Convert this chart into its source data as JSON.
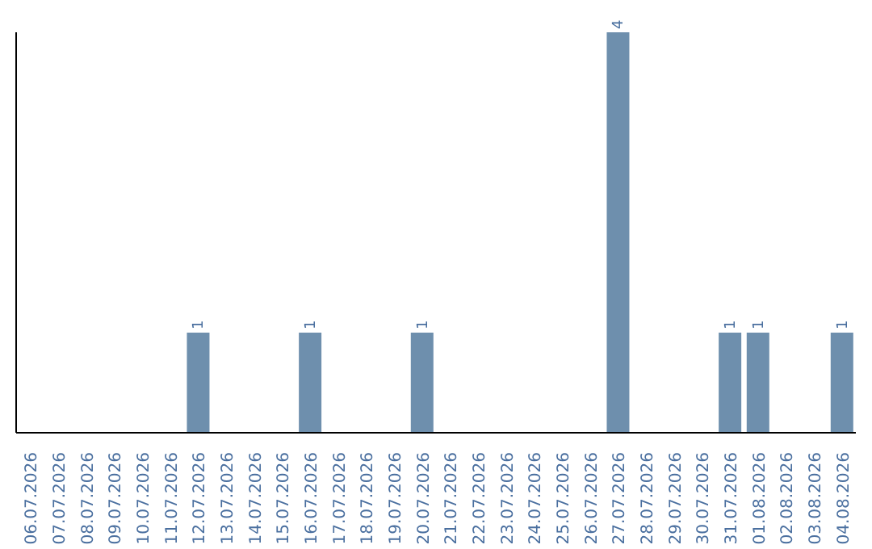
{
  "chart_data": {
    "type": "bar",
    "categories": [
      "06.07.2026",
      "07.07.2026",
      "08.07.2026",
      "09.07.2026",
      "10.07.2026",
      "11.07.2026",
      "12.07.2026",
      "13.07.2026",
      "14.07.2026",
      "15.07.2026",
      "16.07.2026",
      "17.07.2026",
      "18.07.2026",
      "19.07.2026",
      "20.07.2026",
      "21.07.2026",
      "22.07.2026",
      "23.07.2026",
      "24.07.2026",
      "25.07.2026",
      "26.07.2026",
      "27.07.2026",
      "28.07.2026",
      "29.07.2026",
      "30.07.2026",
      "31.07.2026",
      "01.08.2026",
      "02.08.2026",
      "03.08.2026",
      "04.08.2026"
    ],
    "values": [
      0,
      0,
      0,
      0,
      0,
      0,
      1,
      0,
      0,
      0,
      1,
      0,
      0,
      0,
      1,
      0,
      0,
      0,
      0,
      0,
      0,
      4,
      0,
      0,
      0,
      1,
      1,
      0,
      0,
      1
    ],
    "value_labels": [
      null,
      null,
      null,
      null,
      null,
      null,
      "1",
      null,
      null,
      null,
      "1",
      null,
      null,
      null,
      "1",
      null,
      null,
      null,
      null,
      null,
      null,
      "4",
      null,
      null,
      null,
      "1",
      "1",
      null,
      null,
      "1"
    ],
    "color": "#6e8fad",
    "tick_labels": "x"
  }
}
